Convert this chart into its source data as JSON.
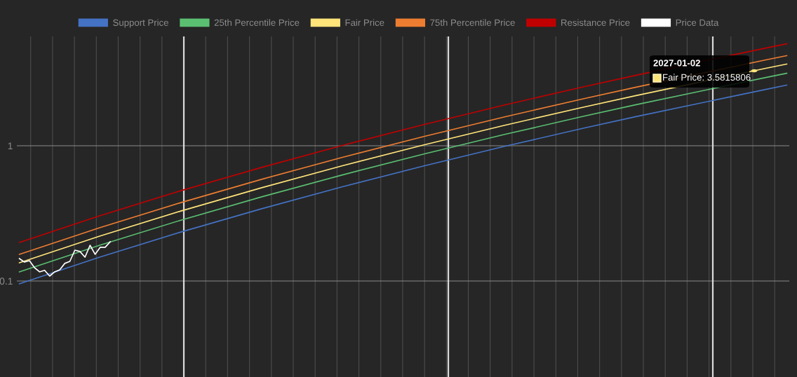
{
  "chart_data": {
    "type": "line",
    "log": "y",
    "grid": true,
    "legend": "top",
    "tick_labels": "y",
    "categories": [
      null,
      null,
      null,
      null,
      null,
      null,
      null,
      null,
      null,
      null,
      null,
      null,
      null,
      null,
      null,
      null,
      null,
      null,
      null,
      null,
      null,
      null,
      null,
      null,
      null,
      null,
      null,
      null,
      null,
      null,
      null,
      null,
      null,
      null,
      null,
      null,
      null,
      null,
      null,
      null,
      null,
      null,
      null,
      null,
      null,
      null,
      null,
      null,
      null,
      null,
      null,
      null,
      null,
      null,
      null,
      null,
      null,
      null,
      null,
      null,
      null,
      null,
      null,
      null,
      null,
      null,
      null,
      null,
      null,
      null,
      null,
      null,
      null,
      null,
      null,
      null,
      null,
      null,
      null,
      null,
      null,
      null,
      null,
      null,
      null,
      null,
      null,
      null,
      null,
      null,
      null,
      null,
      null,
      null,
      null,
      null,
      null,
      null,
      null,
      null,
      null,
      null,
      null,
      null,
      null,
      null,
      null,
      null,
      null,
      null,
      null,
      null,
      null,
      null,
      null,
      null,
      null,
      null,
      null,
      null,
      null,
      null,
      null,
      null,
      null,
      null,
      null,
      null,
      null,
      null,
      null,
      null,
      null,
      null,
      null,
      null,
      null,
      null,
      null,
      null,
      null,
      null,
      null,
      null,
      null,
      null,
      null,
      null,
      null,
      null,
      null,
      null,
      null
    ],
    "ylim": [
      0.0195,
      6.43
    ],
    "yticks": [
      0.1,
      1
    ],
    "series": [
      {
        "name": "Support Price",
        "color": "#4472c4",
        "values": [
          0.0953,
          null,
          null,
          null,
          null,
          null,
          null,
          null,
          null,
          null,
          null,
          null,
          null,
          null,
          null,
          null,
          0.1505,
          null,
          null,
          null,
          null,
          null,
          null,
          null,
          null,
          null,
          null,
          null,
          null,
          null,
          null,
          null,
          0.23,
          null,
          null,
          null,
          null,
          null,
          null,
          null,
          null,
          null,
          null,
          null,
          null,
          null,
          null,
          null,
          0.3422,
          null,
          null,
          null,
          null,
          null,
          null,
          null,
          null,
          null,
          null,
          null,
          null,
          null,
          null,
          null,
          0.4971,
          null,
          null,
          null,
          null,
          null,
          null,
          null,
          null,
          null,
          null,
          null,
          null,
          null,
          null,
          null,
          0.7077,
          null,
          null,
          null,
          null,
          null,
          null,
          null,
          null,
          null,
          null,
          null,
          null,
          null,
          null,
          null,
          0.9877,
          null,
          null,
          null,
          null,
          null,
          null,
          null,
          null,
          null,
          null,
          null,
          null,
          null,
          null,
          null,
          1.355,
          null,
          null,
          null,
          null,
          null,
          null,
          null,
          null,
          null,
          1.638,
          null,
          null,
          null,
          null,
          null,
          null,
          null,
          null,
          null,
          null,
          null,
          null,
          null,
          null,
          null,
          null,
          null,
          null,
          null,
          null,
          null,
          null,
          null,
          null,
          null,
          2.618,
          null,
          null,
          null,
          2.807
        ]
      },
      {
        "name": "25th Percentile Price",
        "color": "#5bbf72",
        "values": [
          0.1168,
          null,
          null,
          null,
          null,
          null,
          null,
          null,
          null,
          null,
          null,
          null,
          null,
          null,
          null,
          null,
          0.1843,
          null,
          null,
          null,
          null,
          null,
          null,
          null,
          null,
          null,
          null,
          null,
          null,
          null,
          null,
          null,
          0.2817,
          null,
          null,
          null,
          null,
          null,
          null,
          null,
          null,
          null,
          null,
          null,
          null,
          null,
          null,
          null,
          0.4191,
          null,
          null,
          null,
          null,
          null,
          null,
          null,
          null,
          null,
          null,
          null,
          null,
          null,
          null,
          null,
          0.6088,
          null,
          null,
          null,
          null,
          null,
          null,
          null,
          null,
          null,
          null,
          null,
          null,
          null,
          null,
          null,
          0.8667,
          null,
          null,
          null,
          null,
          null,
          null,
          null,
          null,
          null,
          null,
          null,
          null,
          null,
          null,
          null,
          1.2095,
          null,
          null,
          null,
          null,
          null,
          null,
          null,
          null,
          null,
          null,
          null,
          null,
          null,
          null,
          null,
          1.66,
          null,
          null,
          null,
          null,
          null,
          null,
          null,
          null,
          null,
          2.006,
          null,
          null,
          null,
          null,
          null,
          null,
          null,
          null,
          null,
          null,
          null,
          null,
          null,
          null,
          null,
          null,
          null,
          null,
          null,
          null,
          null,
          null,
          null,
          null,
          null,
          3.206,
          null,
          null,
          null,
          3.437
        ]
      },
      {
        "name": "Fair Price",
        "color": "#ffe47a",
        "values": [
          0.1364,
          null,
          null,
          null,
          null,
          null,
          null,
          null,
          null,
          null,
          null,
          null,
          null,
          null,
          null,
          null,
          0.2153,
          null,
          null,
          null,
          null,
          null,
          null,
          null,
          null,
          null,
          null,
          null,
          null,
          null,
          null,
          null,
          0.3291,
          null,
          null,
          null,
          null,
          null,
          null,
          null,
          null,
          null,
          null,
          null,
          null,
          null,
          null,
          null,
          0.4896,
          null,
          null,
          null,
          null,
          null,
          null,
          null,
          null,
          null,
          null,
          null,
          null,
          null,
          null,
          null,
          0.7112,
          null,
          null,
          null,
          null,
          null,
          null,
          null,
          null,
          null,
          null,
          null,
          null,
          null,
          null,
          null,
          1.0125,
          null,
          null,
          null,
          null,
          null,
          null,
          null,
          null,
          null,
          null,
          null,
          null,
          null,
          null,
          null,
          1.413,
          null,
          null,
          null,
          null,
          null,
          null,
          null,
          null,
          null,
          null,
          null,
          null,
          null,
          null,
          null,
          1.939,
          null,
          null,
          null,
          null,
          null,
          null,
          null,
          null,
          null,
          2.344,
          null,
          null,
          null,
          null,
          null,
          null,
          null,
          null,
          null,
          null,
          null,
          null,
          null,
          null,
          null,
          null,
          null,
          null,
          null,
          null,
          null,
          null,
          null,
          null,
          null,
          3.745,
          null,
          null,
          null,
          4.015
        ]
      },
      {
        "name": "75th Percentile Price",
        "color": "#ed7d31",
        "values": [
          0.1574,
          null,
          null,
          null,
          null,
          null,
          null,
          null,
          null,
          null,
          null,
          null,
          null,
          null,
          null,
          null,
          0.2485,
          null,
          null,
          null,
          null,
          null,
          null,
          null,
          null,
          null,
          null,
          null,
          null,
          null,
          null,
          null,
          0.3798,
          null,
          null,
          null,
          null,
          null,
          null,
          null,
          null,
          null,
          null,
          null,
          null,
          null,
          null,
          null,
          0.565,
          null,
          null,
          null,
          null,
          null,
          null,
          null,
          null,
          null,
          null,
          null,
          null,
          null,
          null,
          null,
          0.8207,
          null,
          null,
          null,
          null,
          null,
          null,
          null,
          null,
          null,
          null,
          null,
          null,
          null,
          null,
          null,
          1.168,
          null,
          null,
          null,
          null,
          null,
          null,
          null,
          null,
          null,
          null,
          null,
          null,
          null,
          null,
          null,
          1.631,
          null,
          null,
          null,
          null,
          null,
          null,
          null,
          null,
          null,
          null,
          null,
          null,
          null,
          null,
          null,
          2.238,
          null,
          null,
          null,
          null,
          null,
          null,
          null,
          null,
          null,
          2.705,
          null,
          null,
          null,
          null,
          null,
          null,
          null,
          null,
          null,
          null,
          null,
          null,
          null,
          null,
          null,
          null,
          null,
          null,
          null,
          null,
          null,
          null,
          null,
          null,
          null,
          4.322,
          null,
          null,
          null,
          4.633
        ]
      },
      {
        "name": "Resistance Price",
        "color": "#c00000",
        "values": [
          0.1927,
          null,
          null,
          null,
          null,
          null,
          null,
          null,
          null,
          null,
          null,
          null,
          null,
          null,
          null,
          null,
          0.3042,
          null,
          null,
          null,
          null,
          null,
          null,
          null,
          null,
          null,
          null,
          null,
          null,
          null,
          null,
          null,
          0.465,
          null,
          null,
          null,
          null,
          null,
          null,
          null,
          null,
          null,
          null,
          null,
          null,
          null,
          null,
          null,
          0.6918,
          null,
          null,
          null,
          null,
          null,
          null,
          null,
          null,
          null,
          null,
          null,
          null,
          null,
          null,
          null,
          1.005,
          null,
          null,
          null,
          null,
          null,
          null,
          null,
          null,
          null,
          null,
          null,
          null,
          null,
          null,
          null,
          1.431,
          null,
          null,
          null,
          null,
          null,
          null,
          null,
          null,
          null,
          null,
          null,
          null,
          null,
          null,
          null,
          1.997,
          null,
          null,
          null,
          null,
          null,
          null,
          null,
          null,
          null,
          null,
          null,
          null,
          null,
          null,
          null,
          2.74,
          null,
          null,
          null,
          null,
          null,
          null,
          null,
          null,
          null,
          3.312,
          null,
          null,
          null,
          null,
          null,
          null,
          null,
          null,
          null,
          null,
          null,
          null,
          null,
          null,
          null,
          null,
          null,
          null,
          null,
          null,
          null,
          null,
          null,
          null,
          null,
          5.292,
          null,
          null,
          null,
          5.673
        ]
      },
      {
        "name": "Price Data",
        "color": "#ffffff",
        "values": [
          0.1465,
          0.138,
          0.1413,
          0.1254,
          0.1168,
          0.12,
          0.1087,
          0.1168,
          0.1211,
          0.1349,
          0.1396,
          0.169,
          0.1652,
          0.15,
          0.1837,
          0.1574,
          0.1774,
          0.1774,
          0.195,
          null,
          null,
          null,
          null,
          null,
          null,
          null,
          null,
          null,
          null,
          null,
          null,
          null,
          null,
          null,
          null,
          null,
          null,
          null,
          null,
          null,
          null,
          null,
          null,
          null,
          null,
          null,
          null,
          null,
          null,
          null,
          null,
          null,
          null,
          null,
          null,
          null,
          null,
          null,
          null,
          null,
          null,
          null,
          null,
          null,
          null,
          null,
          null,
          null,
          null,
          null,
          null,
          null,
          null,
          null,
          null,
          null,
          null,
          null,
          null,
          null,
          null,
          null,
          null,
          null,
          null,
          null,
          null,
          null,
          null,
          null,
          null,
          null,
          null,
          null,
          null,
          null,
          null,
          null,
          null,
          null,
          null,
          null,
          null,
          null,
          null,
          null,
          null,
          null,
          null,
          null,
          null,
          null,
          null,
          null,
          null,
          null,
          null,
          null,
          null,
          null,
          null,
          null,
          null,
          null,
          null,
          null,
          null,
          null,
          null,
          null,
          null,
          null,
          null,
          null,
          null,
          null,
          null,
          null,
          null,
          null,
          null,
          null,
          null,
          null,
          null,
          null,
          null,
          null,
          null,
          null,
          null,
          null,
          null
        ]
      }
    ],
    "annotations": [
      "2027-01-02",
      "Fair Price: 3.5815806"
    ]
  }
}
